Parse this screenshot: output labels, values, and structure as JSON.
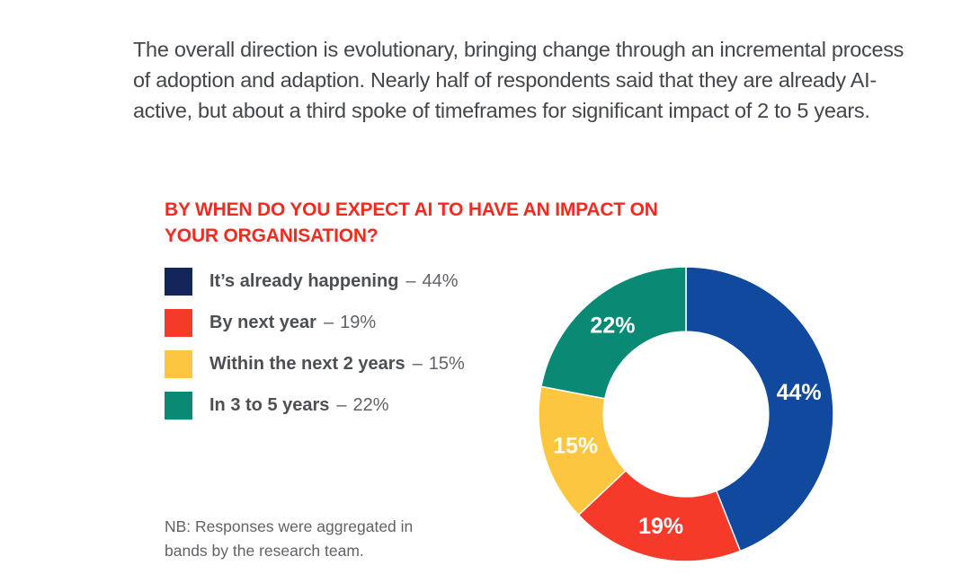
{
  "intro": {
    "text": "The overall direction is evolutionary, bringing change through an incremental process of adoption and adaption. Nearly half of respondents said that they are already AI-active, but about a third spoke of timeframes for significant impact of 2 to 5 years."
  },
  "chart": {
    "heading": "BY WHEN DO YOU EXPECT AI TO HAVE AN IMPACT ON YOUR ORGANISATION?"
  },
  "note": {
    "text": "NB: Responses were aggregated in bands by the research team."
  },
  "legend": {
    "items": [
      {
        "label": "It’s already happening",
        "sep": "–",
        "value": "44%",
        "swatch_color": "#12265a"
      },
      {
        "label": "By next year",
        "sep": "–",
        "value": "19%",
        "swatch_color": "#f53a2a"
      },
      {
        "label": "Within the next 2 years",
        "sep": "–",
        "value": "15%",
        "swatch_color": "#fcc63e"
      },
      {
        "label": "In 3 to 5 years",
        "sep": "–",
        "value": "22%",
        "swatch_color": "#0a8a74"
      }
    ]
  },
  "colors": {
    "heading_red": "#f42a1e",
    "text_dark": "#43474c",
    "text_gray": "#5f6368",
    "legend_label": "#4c5055",
    "slice_label_text": "#ffffff"
  },
  "chart_data": {
    "type": "pie",
    "subtype": "donut",
    "title": "BY WHEN DO YOU EXPECT AI TO HAVE AN IMPACT ON YOUR ORGANISATION?",
    "categories": [
      "It’s already happening",
      "By next year",
      "Within the next 2 years",
      "In 3 to 5 years"
    ],
    "values": [
      44,
      19,
      15,
      22
    ],
    "unit": "%",
    "labels": [
      "44%",
      "19%",
      "15%",
      "22%"
    ],
    "slice_colors": [
      "#10499e",
      "#f53a2a",
      "#fcc63e",
      "#0a8a74"
    ],
    "start_angle_deg": 0,
    "direction": "clockwise",
    "inner_radius_ratio": 0.56,
    "legend_position": "left",
    "data_labels": "inside-white-bold"
  }
}
